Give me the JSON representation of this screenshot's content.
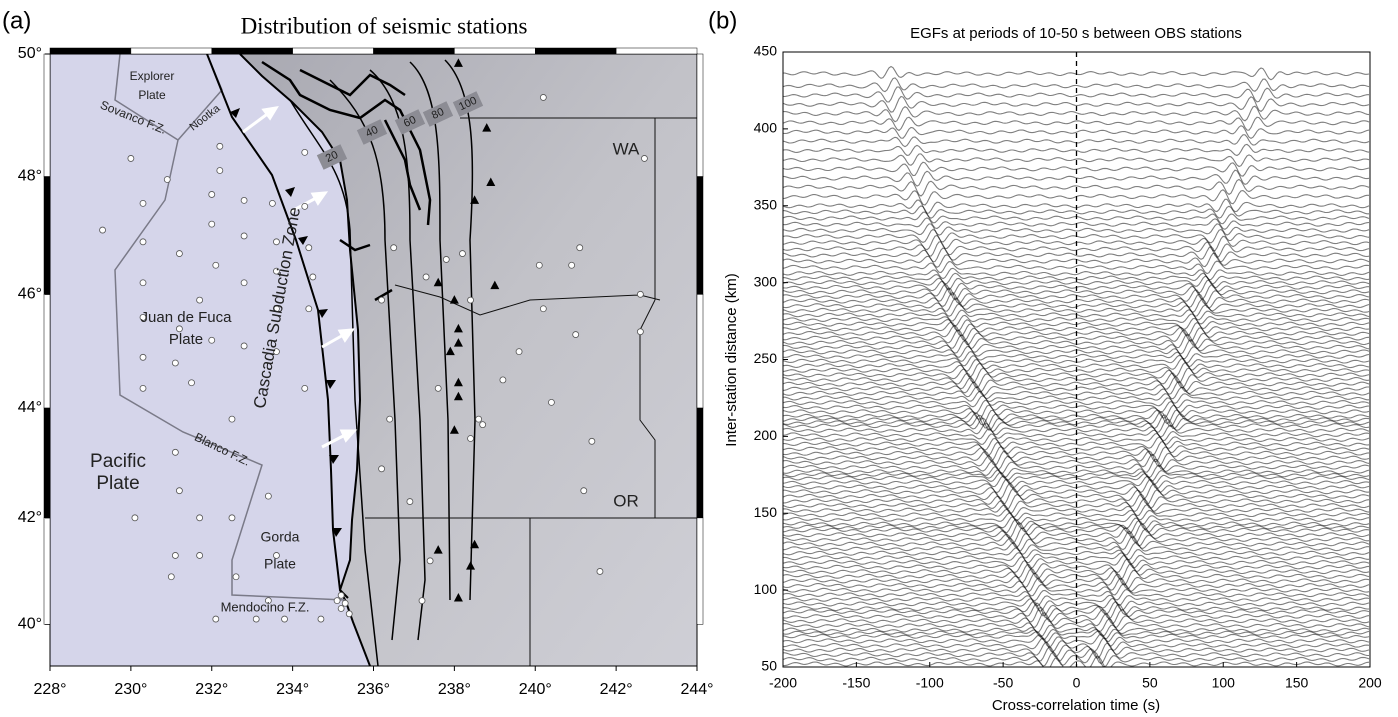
{
  "chart_data": [
    {
      "type": "map",
      "panel_label": "(a)",
      "title": "Distribution of seismic stations",
      "xlim": [
        228,
        244
      ],
      "ylim": [
        39.2,
        50
      ],
      "xticks": [
        {
          "value": 228,
          "label": "228°"
        },
        {
          "value": 230,
          "label": "230°"
        },
        {
          "value": 232,
          "label": "232°"
        },
        {
          "value": 234,
          "label": "234°"
        },
        {
          "value": 236,
          "label": "236°"
        },
        {
          "value": 238,
          "label": "238°"
        },
        {
          "value": 240,
          "label": "240°"
        },
        {
          "value": 242,
          "label": "242°"
        },
        {
          "value": 244,
          "label": "244°"
        }
      ],
      "yticks": [
        {
          "value": 40,
          "label": "40°"
        },
        {
          "value": 42,
          "label": "42°"
        },
        {
          "value": 44,
          "label": "44°"
        },
        {
          "value": 46,
          "label": "46°"
        },
        {
          "value": 48,
          "label": "48°"
        },
        {
          "value": 50,
          "label": "50°"
        }
      ],
      "annotations": [
        "Explorer",
        "Plate",
        "Sovanco F.Z.",
        "Nootka",
        "Juan de Fuca",
        "Plate",
        "Cascadia Subduction Zone",
        "Blanco F.Z.",
        "Pacific",
        "Plate",
        "Gorda",
        "Plate",
        "Mendocino F.Z.",
        "WA",
        "OR"
      ],
      "contour_labels": [
        "20",
        "40",
        "60",
        "80",
        "100"
      ],
      "series": [
        {
          "marker": "circle",
          "color": "#ffffff",
          "x": [
            229.3,
            230.0,
            230.3,
            230.3,
            230.3,
            230.3,
            230.3,
            230.9,
            231.2,
            231.2,
            231.1,
            232.0,
            232.0,
            232.1,
            232.0,
            232.8,
            232.8,
            232.8,
            232.8,
            232.2,
            232.2,
            233.5,
            233.6,
            233.6,
            233.6,
            233.6,
            234.3,
            234.3,
            234.4,
            234.5,
            234.4,
            234.3,
            231.7,
            231.5,
            232.5,
            230.1,
            231.1,
            231.7,
            231.7,
            232.5,
            232.6,
            233.4,
            233.6,
            233.4,
            232.1,
            233.1,
            233.8,
            234.7,
            231.1,
            231.0,
            231.2,
            230.3,
            235.2,
            235.3,
            235.1,
            235.4,
            235.2,
            236.5,
            237.3,
            238.2,
            240.1,
            240.9,
            241.1,
            240.2,
            239.6,
            239.2,
            240.4,
            241.0,
            241.6,
            241.4,
            241.2,
            242.6,
            242.6,
            242.7,
            240.2,
            237.8,
            238.4,
            236.2,
            236.4,
            236.2,
            236.9,
            237.4,
            237.2,
            237.6,
            238.4,
            238.6,
            238.7
          ],
          "y": [
            47.1,
            48.3,
            47.55,
            46.9,
            46.2,
            45.6,
            44.9,
            47.95,
            46.7,
            45.4,
            44.8,
            47.7,
            47.2,
            46.5,
            45.2,
            47.6,
            47.0,
            46.2,
            45.1,
            48.5,
            48.1,
            47.55,
            46.9,
            46.4,
            45.75,
            45.0,
            48.4,
            47.5,
            46.8,
            46.3,
            45.75,
            44.35,
            45.9,
            44.45,
            43.8,
            42.0,
            43.2,
            42.0,
            41.3,
            42.0,
            40.9,
            42.4,
            41.3,
            40.45,
            40.1,
            40.1,
            40.1,
            40.1,
            41.3,
            40.9,
            42.5,
            44.35,
            40.3,
            40.4,
            40.45,
            40.2,
            40.55,
            46.8,
            46.3,
            46.7,
            46.5,
            46.5,
            46.8,
            45.75,
            45.0,
            44.5,
            44.1,
            45.3,
            41.0,
            43.4,
            42.5,
            46.0,
            45.35,
            48.3,
            49.3,
            46.6,
            45.9,
            45.9,
            43.8,
            42.9,
            42.3,
            41.2,
            40.45,
            44.35,
            43.45,
            43.8,
            43.7
          ]
        },
        {
          "marker": "triangle",
          "color": "#000000",
          "x": [
            238.1,
            238.8,
            238.9,
            238.5,
            237.6,
            238.0,
            239.0,
            238.1,
            238.1,
            237.9,
            238.1,
            238.1,
            238.0,
            238.5,
            238.4,
            237.6,
            238.1
          ],
          "y": [
            49.85,
            48.8,
            47.9,
            47.6,
            46.2,
            45.9,
            46.15,
            45.4,
            45.15,
            45.0,
            44.45,
            44.2,
            43.6,
            41.5,
            41.1,
            41.4,
            40.5
          ]
        }
      ]
    },
    {
      "type": "waveform",
      "panel_label": "(b)",
      "title": "EGFs at periods of 10-50 s between OBS stations",
      "xlabel": "Cross-correlation time (s)",
      "ylabel": "Inter-station distance (km)",
      "xlim": [
        -200,
        200
      ],
      "ylim": [
        50,
        450
      ],
      "xticks": [
        -200,
        -150,
        -100,
        -50,
        0,
        50,
        100,
        150,
        200
      ],
      "yticks": [
        50,
        100,
        150,
        200,
        250,
        300,
        350,
        400,
        450
      ],
      "vline": 0,
      "distances": [
        52,
        55,
        58,
        61,
        64,
        67,
        70,
        72,
        74,
        77,
        80,
        83,
        86,
        88,
        91,
        94,
        97,
        100,
        103,
        106,
        109,
        112,
        115,
        118,
        121,
        124,
        127,
        130,
        133,
        136,
        139,
        141,
        143,
        146,
        149,
        152,
        155,
        158,
        161,
        164,
        167,
        170,
        173,
        175,
        177,
        180,
        183,
        186,
        189,
        192,
        195,
        198,
        201,
        204,
        207,
        209,
        211,
        213,
        216,
        219,
        222,
        225,
        228,
        231,
        234,
        237,
        240,
        243,
        246,
        249,
        252,
        255,
        258,
        261,
        264,
        267,
        270,
        273,
        276,
        279,
        282,
        285,
        288,
        291,
        294,
        297,
        300,
        303,
        306,
        310,
        314,
        318,
        322,
        326,
        330,
        334,
        338,
        342,
        346,
        350,
        356,
        362,
        368,
        374,
        380,
        386,
        392,
        398,
        404,
        410,
        416,
        422,
        428,
        436
      ]
    }
  ]
}
